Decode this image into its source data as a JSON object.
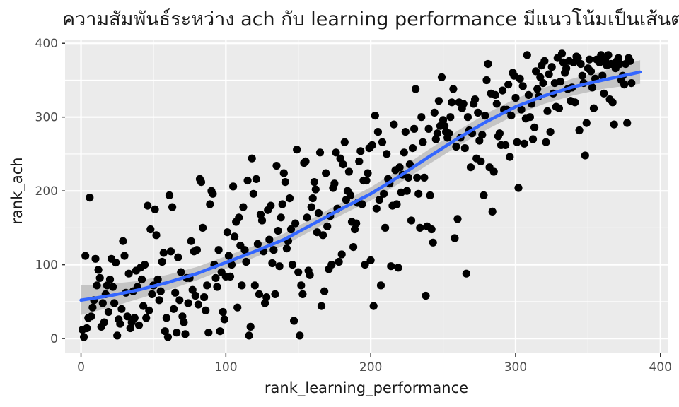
{
  "chart_data": {
    "type": "scatter",
    "title": "ความสัมพันธ์ระหว่าง ach กับ learning performance มีแนวโน้มเป็นเส้นตรง",
    "xlabel": "rank_learning_performance",
    "ylabel": "rank_ach",
    "xlim": [
      -11,
      405
    ],
    "ylim": [
      -20,
      405
    ],
    "x_ticks": [
      0,
      100,
      200,
      300,
      400
    ],
    "y_ticks": [
      0,
      100,
      200,
      300,
      400
    ],
    "x_tick_labels": [
      "0",
      "100",
      "200",
      "300",
      "400"
    ],
    "y_tick_labels": [
      "0",
      "100",
      "200",
      "300",
      "400"
    ],
    "grid": true,
    "colors": {
      "panel": "#ebebeb",
      "grid": "#ffffff",
      "points": "#000000",
      "smooth": "#3366ff",
      "band": "#bdbdbd"
    },
    "points": [
      [
        1,
        12
      ],
      [
        2,
        2
      ],
      [
        3,
        112
      ],
      [
        4,
        14
      ],
      [
        5,
        28
      ],
      [
        6,
        191
      ],
      [
        7,
        30
      ],
      [
        8,
        42
      ],
      [
        9,
        52
      ],
      [
        10,
        108
      ],
      [
        11,
        72
      ],
      [
        12,
        93
      ],
      [
        13,
        82
      ],
      [
        14,
        16
      ],
      [
        15,
        48
      ],
      [
        16,
        22
      ],
      [
        17,
        60
      ],
      [
        18,
        72
      ],
      [
        19,
        36
      ],
      [
        20,
        80
      ],
      [
        21,
        108
      ],
      [
        22,
        70
      ],
      [
        23,
        48
      ],
      [
        24,
        103
      ],
      [
        25,
        4
      ],
      [
        26,
        26
      ],
      [
        27,
        20
      ],
      [
        28,
        40
      ],
      [
        29,
        132
      ],
      [
        30,
        112
      ],
      [
        31,
        62
      ],
      [
        32,
        30
      ],
      [
        33,
        88
      ],
      [
        34,
        14
      ],
      [
        35,
        22
      ],
      [
        36,
        64
      ],
      [
        37,
        28
      ],
      [
        38,
        92
      ],
      [
        39,
        70
      ],
      [
        40,
        18
      ],
      [
        41,
        96
      ],
      [
        42,
        80
      ],
      [
        43,
        44
      ],
      [
        44,
        100
      ],
      [
        45,
        28
      ],
      [
        46,
        180
      ],
      [
        47,
        38
      ],
      [
        48,
        148
      ],
      [
        49,
        60
      ],
      [
        50,
        72
      ],
      [
        51,
        175
      ],
      [
        52,
        140
      ],
      [
        53,
        80
      ],
      [
        54,
        52
      ],
      [
        55,
        64
      ],
      [
        56,
        104
      ],
      [
        57,
        116
      ],
      [
        58,
        10
      ],
      [
        59,
        28
      ],
      [
        60,
        2
      ],
      [
        61,
        194
      ],
      [
        62,
        118
      ],
      [
        63,
        178
      ],
      [
        64,
        40
      ],
      [
        65,
        62
      ],
      [
        66,
        8
      ],
      [
        67,
        110
      ],
      [
        68,
        52
      ],
      [
        69,
        90
      ],
      [
        70,
        30
      ],
      [
        71,
        22
      ],
      [
        72,
        6
      ],
      [
        73,
        82
      ],
      [
        74,
        48
      ],
      [
        75,
        82
      ],
      [
        76,
        132
      ],
      [
        77,
        66
      ],
      [
        78,
        118
      ],
      [
        79,
        58
      ],
      [
        80,
        120
      ],
      [
        81,
        46
      ],
      [
        82,
        216
      ],
      [
        83,
        212
      ],
      [
        84,
        150
      ],
      [
        85,
        56
      ],
      [
        86,
        38
      ],
      [
        87,
        72
      ],
      [
        88,
        8
      ],
      [
        89,
        182
      ],
      [
        90,
        200
      ],
      [
        91,
        196
      ],
      [
        92,
        100
      ],
      [
        93,
        82
      ],
      [
        94,
        70
      ],
      [
        95,
        120
      ],
      [
        96,
        10
      ],
      [
        97,
        90
      ],
      [
        98,
        36
      ],
      [
        99,
        26
      ],
      [
        100,
        84
      ],
      [
        101,
        144
      ],
      [
        102,
        112
      ],
      [
        103,
        84
      ],
      [
        104,
        100
      ],
      [
        105,
        206
      ],
      [
        106,
        138
      ],
      [
        107,
        158
      ],
      [
        108,
        42
      ],
      [
        109,
        164
      ],
      [
        110,
        126
      ],
      [
        111,
        72
      ],
      [
        112,
        178
      ],
      [
        113,
        120
      ],
      [
        114,
        104
      ],
      [
        115,
        214
      ],
      [
        116,
        4
      ],
      [
        117,
        16
      ],
      [
        118,
        244
      ],
      [
        119,
        196
      ],
      [
        120,
        72
      ],
      [
        121,
        216
      ],
      [
        122,
        128
      ],
      [
        123,
        60
      ],
      [
        124,
        168
      ],
      [
        125,
        160
      ],
      [
        126,
        118
      ],
      [
        127,
        48
      ],
      [
        128,
        56
      ],
      [
        129,
        174
      ],
      [
        130,
        134
      ],
      [
        131,
        180
      ],
      [
        132,
        102
      ],
      [
        133,
        120
      ],
      [
        134,
        60
      ],
      [
        135,
        234
      ],
      [
        136,
        146
      ],
      [
        137,
        98
      ],
      [
        138,
        164
      ],
      [
        139,
        182
      ],
      [
        140,
        224
      ],
      [
        141,
        212
      ],
      [
        142,
        122
      ],
      [
        143,
        132
      ],
      [
        144,
        190
      ],
      [
        145,
        148
      ],
      [
        146,
        100
      ],
      [
        147,
        24
      ],
      [
        148,
        156
      ],
      [
        149,
        256
      ],
      [
        150,
        90
      ],
      [
        151,
        4
      ],
      [
        152,
        72
      ],
      [
        153,
        60
      ],
      [
        154,
        238
      ],
      [
        155,
        240
      ],
      [
        156,
        164
      ],
      [
        157,
        92
      ],
      [
        158,
        86
      ],
      [
        159,
        178
      ],
      [
        160,
        190
      ],
      [
        161,
        212
      ],
      [
        162,
        202
      ],
      [
        163,
        144
      ],
      [
        164,
        170
      ],
      [
        165,
        252
      ],
      [
        166,
        44
      ],
      [
        167,
        140
      ],
      [
        168,
        64
      ],
      [
        169,
        224
      ],
      [
        170,
        152
      ],
      [
        171,
        94
      ],
      [
        172,
        166
      ],
      [
        173,
        100
      ],
      [
        174,
        204
      ],
      [
        175,
        210
      ],
      [
        176,
        252
      ],
      [
        177,
        176
      ],
      [
        178,
        104
      ],
      [
        179,
        244
      ],
      [
        180,
        114
      ],
      [
        181,
        236
      ],
      [
        182,
        266
      ],
      [
        183,
        188
      ],
      [
        184,
        200
      ],
      [
        185,
        226
      ],
      [
        186,
        194
      ],
      [
        187,
        158
      ],
      [
        188,
        124
      ],
      [
        189,
        148
      ],
      [
        190,
        156
      ],
      [
        191,
        184
      ],
      [
        192,
        240
      ],
      [
        193,
        254
      ],
      [
        194,
        182
      ],
      [
        195,
        214
      ],
      [
        196,
        100
      ],
      [
        197,
        214
      ],
      [
        198,
        224
      ],
      [
        199,
        258
      ],
      [
        200,
        106
      ],
      [
        201,
        262
      ],
      [
        202,
        44
      ],
      [
        203,
        302
      ],
      [
        204,
        176
      ],
      [
        205,
        280
      ],
      [
        206,
        188
      ],
      [
        207,
        72
      ],
      [
        208,
        266
      ],
      [
        209,
        196
      ],
      [
        210,
        150
      ],
      [
        211,
        250
      ],
      [
        212,
        216
      ],
      [
        213,
        210
      ],
      [
        214,
        98
      ],
      [
        215,
        180
      ],
      [
        216,
        290
      ],
      [
        217,
        228
      ],
      [
        218,
        182
      ],
      [
        219,
        96
      ],
      [
        220,
        232
      ],
      [
        221,
        198
      ],
      [
        222,
        222
      ],
      [
        223,
        252
      ],
      [
        224,
        280
      ],
      [
        225,
        200
      ],
      [
        226,
        218
      ],
      [
        227,
        236
      ],
      [
        228,
        160
      ],
      [
        229,
        258
      ],
      [
        230,
        284
      ],
      [
        231,
        338
      ],
      [
        232,
        218
      ],
      [
        233,
        196
      ],
      [
        234,
        150
      ],
      [
        235,
        300
      ],
      [
        236,
        266
      ],
      [
        237,
        218
      ],
      [
        238,
        58
      ],
      [
        239,
        152
      ],
      [
        240,
        284
      ],
      [
        241,
        194
      ],
      [
        242,
        148
      ],
      [
        243,
        130
      ],
      [
        244,
        306
      ],
      [
        245,
        270
      ],
      [
        246,
        278
      ],
      [
        247,
        322
      ],
      [
        248,
        288
      ],
      [
        249,
        354
      ],
      [
        250,
        296
      ],
      [
        251,
        288
      ],
      [
        252,
        280
      ],
      [
        253,
        272
      ],
      [
        254,
        278
      ],
      [
        255,
        300
      ],
      [
        256,
        320
      ],
      [
        257,
        338
      ],
      [
        258,
        136
      ],
      [
        259,
        260
      ],
      [
        260,
        162
      ],
      [
        261,
        320
      ],
      [
        262,
        272
      ],
      [
        263,
        312
      ],
      [
        264,
        318
      ],
      [
        265,
        258
      ],
      [
        266,
        88
      ],
      [
        267,
        300
      ],
      [
        268,
        282
      ],
      [
        269,
        232
      ],
      [
        270,
        278
      ],
      [
        271,
        318
      ],
      [
        272,
        324
      ],
      [
        273,
        244
      ],
      [
        274,
        306
      ],
      [
        275,
        268
      ],
      [
        276,
        240
      ],
      [
        277,
        276
      ],
      [
        278,
        194
      ],
      [
        279,
        302
      ],
      [
        280,
        350
      ],
      [
        281,
        372
      ],
      [
        282,
        232
      ],
      [
        283,
        332
      ],
      [
        284,
        172
      ],
      [
        285,
        226
      ],
      [
        286,
        330
      ],
      [
        287,
        318
      ],
      [
        288,
        274
      ],
      [
        289,
        278
      ],
      [
        290,
        262
      ],
      [
        291,
        336
      ],
      [
        292,
        310
      ],
      [
        293,
        262
      ],
      [
        294,
        310
      ],
      [
        295,
        344
      ],
      [
        296,
        246
      ],
      [
        297,
        302
      ],
      [
        298,
        360
      ],
      [
        299,
        356
      ],
      [
        300,
        326
      ],
      [
        301,
        266
      ],
      [
        302,
        204
      ],
      [
        303,
        352
      ],
      [
        304,
        310
      ],
      [
        305,
        342
      ],
      [
        306,
        264
      ],
      [
        307,
        298
      ],
      [
        308,
        384
      ],
      [
        309,
        330
      ],
      [
        310,
        300
      ],
      [
        311,
        318
      ],
      [
        312,
        270
      ],
      [
        313,
        286
      ],
      [
        314,
        362
      ],
      [
        315,
        338
      ],
      [
        316,
        328
      ],
      [
        317,
        354
      ],
      [
        318,
        370
      ],
      [
        319,
        346
      ],
      [
        320,
        376
      ],
      [
        321,
        266
      ],
      [
        322,
        308
      ],
      [
        323,
        358
      ],
      [
        324,
        280
      ],
      [
        325,
        368
      ],
      [
        326,
        332
      ],
      [
        327,
        346
      ],
      [
        328,
        314
      ],
      [
        329,
        380
      ],
      [
        330,
        312
      ],
      [
        331,
        348
      ],
      [
        332,
        386
      ],
      [
        333,
        374
      ],
      [
        334,
        360
      ],
      [
        335,
        366
      ],
      [
        336,
        338
      ],
      [
        337,
        376
      ],
      [
        338,
        322
      ],
      [
        339,
        340
      ],
      [
        340,
        374
      ],
      [
        341,
        320
      ],
      [
        342,
        382
      ],
      [
        343,
        380
      ],
      [
        344,
        282
      ],
      [
        345,
        372
      ],
      [
        346,
        356
      ],
      [
        347,
        346
      ],
      [
        348,
        248
      ],
      [
        349,
        292
      ],
      [
        350,
        366
      ],
      [
        351,
        378
      ],
      [
        352,
        362
      ],
      [
        353,
        340
      ],
      [
        354,
        312
      ],
      [
        355,
        352
      ],
      [
        356,
        378
      ],
      [
        357,
        378
      ],
      [
        358,
        374
      ],
      [
        359,
        384
      ],
      [
        360,
        356
      ],
      [
        361,
        332
      ],
      [
        362,
        376
      ],
      [
        363,
        370
      ],
      [
        364,
        384
      ],
      [
        365,
        324
      ],
      [
        366,
        372
      ],
      [
        367,
        320
      ],
      [
        368,
        290
      ],
      [
        369,
        366
      ],
      [
        370,
        376
      ],
      [
        371,
        380
      ],
      [
        372,
        372
      ],
      [
        373,
        350
      ],
      [
        374,
        356
      ],
      [
        375,
        344
      ],
      [
        376,
        372
      ],
      [
        377,
        292
      ],
      [
        378,
        380
      ],
      [
        379,
        376
      ],
      [
        380,
        346
      ]
    ],
    "smooth": [
      [
        0,
        52
      ],
      [
        20,
        58
      ],
      [
        40,
        66
      ],
      [
        60,
        76
      ],
      [
        80,
        88
      ],
      [
        100,
        103
      ],
      [
        120,
        118
      ],
      [
        140,
        134
      ],
      [
        160,
        155
      ],
      [
        180,
        176
      ],
      [
        200,
        196
      ],
      [
        220,
        220
      ],
      [
        240,
        246
      ],
      [
        260,
        271
      ],
      [
        280,
        294
      ],
      [
        300,
        314
      ],
      [
        320,
        329
      ],
      [
        340,
        341
      ],
      [
        360,
        350
      ],
      [
        386,
        361
      ]
    ],
    "band_half_width": [
      [
        0,
        20
      ],
      [
        40,
        12
      ],
      [
        80,
        9
      ],
      [
        120,
        8
      ],
      [
        160,
        8
      ],
      [
        200,
        9
      ],
      [
        240,
        10
      ],
      [
        280,
        11
      ],
      [
        320,
        11
      ],
      [
        360,
        12
      ],
      [
        386,
        16
      ]
    ]
  }
}
